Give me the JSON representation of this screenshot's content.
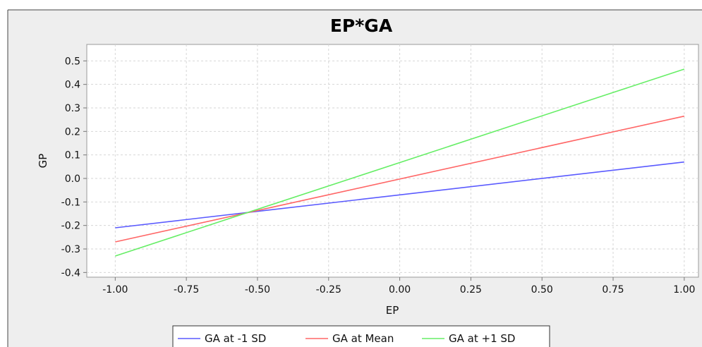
{
  "chart_data": {
    "type": "line",
    "title": "EP*GA",
    "xlabel": "EP",
    "ylabel": "GP",
    "xlim": [
      -1.1,
      1.05
    ],
    "ylim": [
      -0.42,
      0.57
    ],
    "x_ticks": [
      -1.0,
      -0.75,
      -0.5,
      -0.25,
      0.0,
      0.25,
      0.5,
      0.75,
      1.0
    ],
    "x_tick_labels": [
      "-1.00",
      "-0.75",
      "-0.50",
      "-0.25",
      "0.00",
      "0.25",
      "0.50",
      "0.75",
      "1.00"
    ],
    "y_ticks": [
      -0.4,
      -0.3,
      -0.2,
      -0.1,
      0.0,
      0.1,
      0.2,
      0.3,
      0.4,
      0.5
    ],
    "y_tick_labels": [
      "-0.4",
      "-0.3",
      "-0.2",
      "-0.1",
      "0.0",
      "0.1",
      "0.2",
      "0.3",
      "0.4",
      "0.5"
    ],
    "grid": true,
    "legend_position": "bottom",
    "series": [
      {
        "name": "GA at -1 SD",
        "color": "#5a5aff",
        "x": [
          -1.0,
          1.0
        ],
        "y": [
          -0.21,
          0.07
        ]
      },
      {
        "name": "GA at Mean",
        "color": "#ff6666",
        "x": [
          -1.0,
          1.0
        ],
        "y": [
          -0.27,
          0.265
        ]
      },
      {
        "name": "GA at +1 SD",
        "color": "#66ee66",
        "x": [
          -1.0,
          1.0
        ],
        "y": [
          -0.33,
          0.465
        ]
      }
    ]
  }
}
